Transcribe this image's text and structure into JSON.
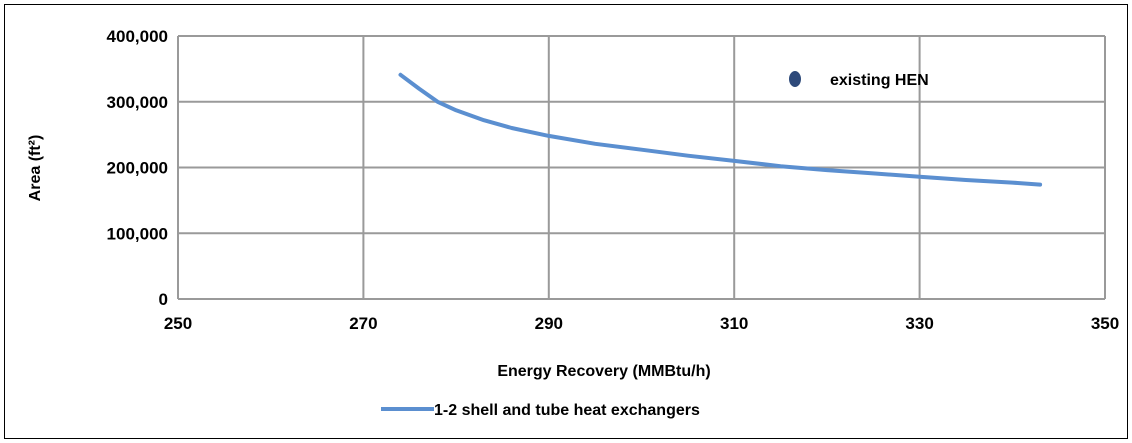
{
  "chart_data": {
    "type": "scatter",
    "title": "",
    "xlabel": "Energy Recovery (MMBtu/h)",
    "ylabel": "Area (ft²)",
    "xlim": [
      250,
      350
    ],
    "ylim": [
      0,
      400000
    ],
    "x_ticks": [
      250,
      270,
      290,
      310,
      330,
      350
    ],
    "x_tick_labels": [
      "250",
      "270",
      "290",
      "310",
      "330",
      "350"
    ],
    "y_ticks": [
      0,
      100000,
      200000,
      300000,
      400000
    ],
    "y_tick_labels": [
      "0",
      "100,000",
      "200,000",
      "300,000",
      "400,000"
    ],
    "grid": true,
    "series": [
      {
        "name": "1-2 shell and tube heat exchangers",
        "kind": "line",
        "color": "#5b8fd0",
        "x": [
          274,
          276,
          278,
          280,
          283,
          286,
          290,
          295,
          300,
          305,
          310,
          315,
          320,
          325,
          330,
          335,
          340,
          343
        ],
        "y": [
          341000,
          320000,
          300000,
          287000,
          272000,
          260000,
          248000,
          236000,
          227000,
          218000,
          210000,
          202000,
          196000,
          191000,
          186000,
          181000,
          177000,
          174000
        ]
      },
      {
        "name": "existing HEN",
        "kind": "point",
        "color": "#2e4a7a",
        "x": [],
        "y": []
      }
    ],
    "legend": {
      "inside_entry": {
        "label": "existing HEN",
        "placement": "top-right"
      },
      "bottom_entry": {
        "label": "1-2 shell and tube heat exchangers",
        "placement": "bottom-center"
      }
    }
  }
}
